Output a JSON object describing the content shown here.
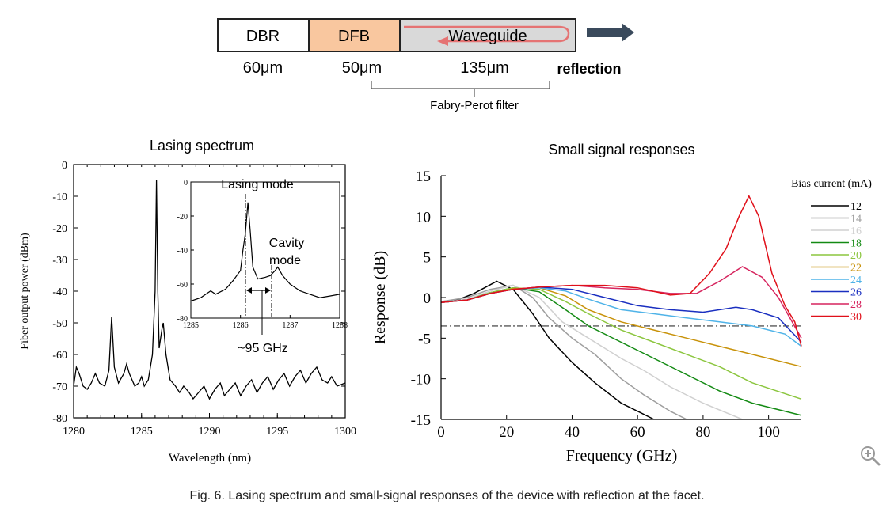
{
  "device": {
    "sections": [
      {
        "label": "DBR",
        "length": "60μm",
        "color": "#ffffff"
      },
      {
        "label": "DFB",
        "length": "50μm",
        "color": "#f9c79f"
      },
      {
        "label": "Waveguide",
        "length": "135μm",
        "color": "#d9d9d9"
      }
    ],
    "reflection_label": "reflection",
    "filter_label": "Fabry-Perot filter",
    "arrow_color": "#3a4a5c",
    "reflection_arrow_color": "#e57373"
  },
  "caption": "Fig. 6. Lasing spectrum and small-signal responses of the device with reflection at the facet.",
  "chart_data": [
    {
      "type": "line",
      "title": "Lasing spectrum",
      "xlabel": "Wavelength (nm)",
      "ylabel": "Fiber output power (dBm)",
      "xlim": [
        1280,
        1300
      ],
      "ylim": [
        -80,
        0
      ],
      "xticks": [
        "1280",
        "1285",
        "1290",
        "1295",
        "1300"
      ],
      "yticks": [
        "0",
        "-10",
        "-20",
        "-30",
        "-40",
        "-50",
        "-60",
        "-70",
        "-80"
      ],
      "series": [
        {
          "color": "#000000",
          "points": [
            [
              1280,
              -70
            ],
            [
              1280.2,
              -64
            ],
            [
              1280.4,
              -66
            ],
            [
              1280.7,
              -70
            ],
            [
              1281,
              -71
            ],
            [
              1281.3,
              -69
            ],
            [
              1281.6,
              -66
            ],
            [
              1281.9,
              -69
            ],
            [
              1282.3,
              -70
            ],
            [
              1282.6,
              -65
            ],
            [
              1282.8,
              -48
            ],
            [
              1283,
              -64
            ],
            [
              1283.3,
              -69
            ],
            [
              1283.7,
              -66
            ],
            [
              1283.9,
              -63
            ],
            [
              1284.1,
              -66
            ],
            [
              1284.5,
              -70
            ],
            [
              1284.8,
              -69
            ],
            [
              1285,
              -67
            ],
            [
              1285.2,
              -70
            ],
            [
              1285.5,
              -68
            ],
            [
              1285.8,
              -60
            ],
            [
              1286,
              -40
            ],
            [
              1286.1,
              -5
            ],
            [
              1286.2,
              -40
            ],
            [
              1286.3,
              -58
            ],
            [
              1286.5,
              -52
            ],
            [
              1286.6,
              -50
            ],
            [
              1286.8,
              -60
            ],
            [
              1287.1,
              -68
            ],
            [
              1287.5,
              -70
            ],
            [
              1287.8,
              -72
            ],
            [
              1288.1,
              -70
            ],
            [
              1288.5,
              -72
            ],
            [
              1288.8,
              -74
            ],
            [
              1289.2,
              -72
            ],
            [
              1289.6,
              -70
            ],
            [
              1290,
              -74
            ],
            [
              1290.4,
              -71
            ],
            [
              1290.8,
              -69
            ],
            [
              1291.1,
              -73
            ],
            [
              1291.5,
              -71
            ],
            [
              1291.9,
              -69
            ],
            [
              1292.3,
              -73
            ],
            [
              1292.7,
              -70
            ],
            [
              1293.1,
              -68
            ],
            [
              1293.5,
              -72
            ],
            [
              1293.9,
              -69
            ],
            [
              1294.3,
              -67
            ],
            [
              1294.7,
              -71
            ],
            [
              1295.1,
              -68
            ],
            [
              1295.5,
              -66
            ],
            [
              1295.9,
              -70
            ],
            [
              1296.3,
              -67
            ],
            [
              1296.7,
              -65
            ],
            [
              1297.1,
              -69
            ],
            [
              1297.5,
              -66
            ],
            [
              1297.9,
              -64
            ],
            [
              1298.3,
              -68
            ],
            [
              1298.7,
              -69
            ],
            [
              1299,
              -67
            ],
            [
              1299.4,
              -70
            ],
            [
              1300,
              -69
            ]
          ]
        }
      ],
      "inset": {
        "xlim": [
          1285,
          1288
        ],
        "ylim": [
          -80,
          0
        ],
        "xticks": [
          "1285",
          "1286",
          "1287",
          "1288"
        ],
        "yticks": [
          "0",
          "-20",
          "-40",
          "-60",
          "-80"
        ],
        "annotations": [
          "Lasing mode",
          "Cavity mode",
          "~95 GHz"
        ],
        "points": [
          [
            1285,
            -70
          ],
          [
            1285.2,
            -68
          ],
          [
            1285.4,
            -64
          ],
          [
            1285.5,
            -66
          ],
          [
            1285.7,
            -63
          ],
          [
            1285.85,
            -58
          ],
          [
            1286,
            -52
          ],
          [
            1286.05,
            -40
          ],
          [
            1286.1,
            -30
          ],
          [
            1286.15,
            -12
          ],
          [
            1286.2,
            -30
          ],
          [
            1286.25,
            -50
          ],
          [
            1286.35,
            -57
          ],
          [
            1286.5,
            -56
          ],
          [
            1286.6,
            -55
          ],
          [
            1286.7,
            -52
          ],
          [
            1286.75,
            -50
          ],
          [
            1286.85,
            -55
          ],
          [
            1287,
            -60
          ],
          [
            1287.2,
            -64
          ],
          [
            1287.4,
            -66
          ],
          [
            1287.6,
            -68
          ],
          [
            1287.8,
            -67
          ],
          [
            1288,
            -66
          ]
        ]
      }
    },
    {
      "type": "line",
      "title": "Small signal responses",
      "xlabel": "Frequency (GHz)",
      "ylabel": "Response (dB)",
      "xlim": [
        0,
        110
      ],
      "ylim": [
        -15,
        15
      ],
      "xticks": [
        "0",
        "20",
        "40",
        "60",
        "80",
        "100"
      ],
      "yticks": [
        "15",
        "10",
        "5",
        "0",
        "-5",
        "-10",
        "-15"
      ],
      "legend_title": "Bias current (mA)",
      "legend_position": "top-right",
      "reference_line_db": -3.5,
      "series": [
        {
          "name": "12",
          "color": "#000000",
          "points": [
            [
              0,
              -0.5
            ],
            [
              5,
              -0.3
            ],
            [
              10,
              0.5
            ],
            [
              17,
              2
            ],
            [
              22,
              1
            ],
            [
              28,
              -2
            ],
            [
              33,
              -5
            ],
            [
              40,
              -8
            ],
            [
              47,
              -10.5
            ],
            [
              55,
              -13
            ],
            [
              60,
              -14
            ],
            [
              65,
              -15
            ]
          ]
        },
        {
          "name": "14",
          "color": "#9e9e9e",
          "points": [
            [
              0,
              -0.5
            ],
            [
              8,
              0
            ],
            [
              15,
              1
            ],
            [
              22,
              1.5
            ],
            [
              28,
              0
            ],
            [
              33,
              -2.5
            ],
            [
              40,
              -5
            ],
            [
              47,
              -7
            ],
            [
              55,
              -10
            ],
            [
              62,
              -12
            ],
            [
              70,
              -14
            ],
            [
              75,
              -15
            ]
          ]
        },
        {
          "name": "16",
          "color": "#d0d0d0",
          "points": [
            [
              0,
              -0.6
            ],
            [
              8,
              -0.2
            ],
            [
              15,
              0.8
            ],
            [
              22,
              1.5
            ],
            [
              30,
              0
            ],
            [
              37,
              -3
            ],
            [
              45,
              -5
            ],
            [
              55,
              -7.5
            ],
            [
              62,
              -9
            ],
            [
              70,
              -11
            ],
            [
              80,
              -13
            ],
            [
              92,
              -15
            ]
          ]
        },
        {
          "name": "18",
          "color": "#138a13",
          "points": [
            [
              0,
              -0.6
            ],
            [
              8,
              -0.3
            ],
            [
              15,
              0.6
            ],
            [
              22,
              1.2
            ],
            [
              30,
              0.7
            ],
            [
              38,
              -1.5
            ],
            [
              45,
              -3.5
            ],
            [
              55,
              -5.5
            ],
            [
              65,
              -7.5
            ],
            [
              75,
              -9.5
            ],
            [
              85,
              -11.5
            ],
            [
              95,
              -13
            ],
            [
              110,
              -14.5
            ]
          ]
        },
        {
          "name": "20",
          "color": "#8cc63f",
          "points": [
            [
              0,
              -0.6
            ],
            [
              8,
              -0.3
            ],
            [
              15,
              0.6
            ],
            [
              22,
              1.2
            ],
            [
              30,
              1
            ],
            [
              38,
              -0.5
            ],
            [
              45,
              -2
            ],
            [
              55,
              -4
            ],
            [
              65,
              -5.5
            ],
            [
              75,
              -7
            ],
            [
              85,
              -8.5
            ],
            [
              95,
              -10.5
            ],
            [
              110,
              -12.5
            ]
          ]
        },
        {
          "name": "22",
          "color": "#c8920a",
          "points": [
            [
              0,
              -0.6
            ],
            [
              8,
              -0.3
            ],
            [
              15,
              0.5
            ],
            [
              22,
              1.1
            ],
            [
              30,
              1.2
            ],
            [
              38,
              0.2
            ],
            [
              45,
              -1.5
            ],
            [
              55,
              -3
            ],
            [
              65,
              -4
            ],
            [
              75,
              -5
            ],
            [
              85,
              -6
            ],
            [
              95,
              -7
            ],
            [
              110,
              -8.5
            ]
          ]
        },
        {
          "name": "24",
          "color": "#4fb3e8",
          "points": [
            [
              0,
              -0.6
            ],
            [
              8,
              -0.3
            ],
            [
              15,
              0.5
            ],
            [
              22,
              1
            ],
            [
              30,
              1.2
            ],
            [
              38,
              0.8
            ],
            [
              45,
              -0.2
            ],
            [
              55,
              -1.5
            ],
            [
              65,
              -2
            ],
            [
              75,
              -2.5
            ],
            [
              85,
              -3
            ],
            [
              95,
              -3.5
            ],
            [
              105,
              -4.5
            ],
            [
              110,
              -6
            ]
          ]
        },
        {
          "name": "26",
          "color": "#1a2fc0",
          "points": [
            [
              0,
              -0.6
            ],
            [
              8,
              -0.3
            ],
            [
              15,
              0.5
            ],
            [
              22,
              1
            ],
            [
              30,
              1.3
            ],
            [
              40,
              1
            ],
            [
              50,
              0
            ],
            [
              60,
              -1
            ],
            [
              70,
              -1.5
            ],
            [
              80,
              -1.8
            ],
            [
              90,
              -1.2
            ],
            [
              95,
              -1.5
            ],
            [
              103,
              -2.5
            ],
            [
              110,
              -5.5
            ]
          ]
        },
        {
          "name": "28",
          "color": "#d6245e",
          "points": [
            [
              0,
              -0.6
            ],
            [
              8,
              -0.3
            ],
            [
              15,
              0.5
            ],
            [
              22,
              1
            ],
            [
              30,
              1.3
            ],
            [
              40,
              1.5
            ],
            [
              50,
              1.2
            ],
            [
              60,
              1
            ],
            [
              70,
              0.5
            ],
            [
              78,
              0.5
            ],
            [
              85,
              2
            ],
            [
              92,
              3.8
            ],
            [
              98,
              2.5
            ],
            [
              103,
              0
            ],
            [
              110,
              -5
            ]
          ]
        },
        {
          "name": "30",
          "color": "#e0101a",
          "points": [
            [
              0,
              -0.6
            ],
            [
              8,
              -0.3
            ],
            [
              15,
              0.5
            ],
            [
              22,
              1
            ],
            [
              30,
              1.3
            ],
            [
              40,
              1.5
            ],
            [
              50,
              1.5
            ],
            [
              60,
              1.2
            ],
            [
              70,
              0.3
            ],
            [
              76,
              0.5
            ],
            [
              82,
              3
            ],
            [
              87,
              6
            ],
            [
              91,
              10
            ],
            [
              94,
              12.5
            ],
            [
              97,
              10
            ],
            [
              101,
              3
            ],
            [
              105,
              -1
            ],
            [
              108,
              -3
            ],
            [
              110,
              -6
            ]
          ]
        }
      ]
    }
  ]
}
